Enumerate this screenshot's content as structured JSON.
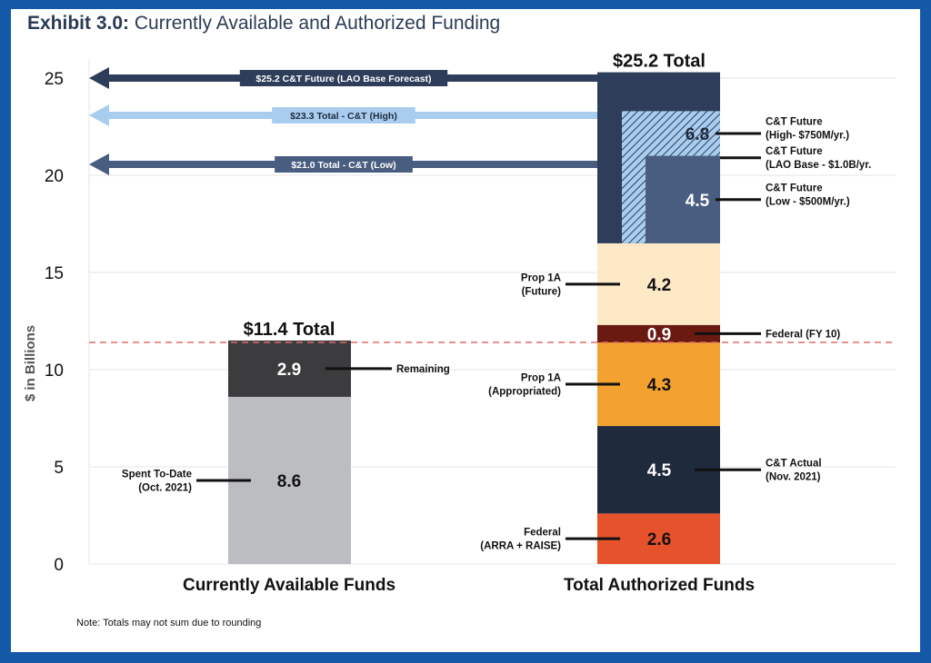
{
  "title_bold": "Exhibit 3.0:",
  "title_rest": " Currently Available and Authorized Funding",
  "note": "Note: Totals may not sum due to rounding",
  "chart_data": {
    "type": "bar",
    "stacked": true,
    "ylabel": "$ in Billions",
    "ylim": [
      0,
      25.5
    ],
    "yticks": [
      0,
      5,
      10,
      15,
      20,
      25
    ],
    "grid": true,
    "categories": [
      "Currently Available Funds",
      "Total Authorized Funds"
    ],
    "totals": [
      "$11.4 Total",
      "$25.2 Total"
    ],
    "stacks": [
      {
        "category": "Currently Available Funds",
        "segments": [
          {
            "label": "Spent To-Date\n(Oct. 2021)",
            "value": 8.6,
            "value_label": "8.6",
            "color": "#bcbdc1",
            "text_color": "#111111",
            "label_side": "left"
          },
          {
            "label": "Remaining",
            "value": 2.9,
            "value_label": "2.9",
            "color": "#3c3c3e",
            "text_color": "#ffffff",
            "label_side": "right"
          }
        ]
      },
      {
        "category": "Total Authorized Funds",
        "segments": [
          {
            "label": "Federal\n(ARRA + RAISE)",
            "value": 2.6,
            "value_label": "2.6",
            "color": "#e6522c",
            "text_color": "#111111",
            "label_side": "left"
          },
          {
            "label": "C&T Actual\n(Nov. 2021)",
            "value": 4.5,
            "value_label": "4.5",
            "color": "#1f2a3d",
            "text_color": "#ffffff",
            "label_side": "right"
          },
          {
            "label": "Prop 1A\n(Appropriated)",
            "value": 4.3,
            "value_label": "4.3",
            "color": "#f3a12f",
            "text_color": "#111111",
            "label_side": "left"
          },
          {
            "label": "Federal (FY 10)",
            "value": 0.9,
            "value_label": "0.9",
            "color": "#6b1a12",
            "text_color": "#ffffff",
            "label_side": "right"
          },
          {
            "label": "Prop 1A\n(Future)",
            "value": 4.2,
            "value_label": "4.2",
            "color": "#fde9c6",
            "text_color": "#111111",
            "label_side": "left"
          },
          {
            "label": "C&T Future\n(LAO Base - $1.0B/yr.",
            "value": 8.8,
            "value_label": "8.8",
            "color": "#2e3d59",
            "text_color": "#ffffff",
            "label_side": "right"
          }
        ],
        "overlays": [
          {
            "label": "C&T Future\n(High- $750M/yr.)",
            "value": 6.8,
            "value_label": "6.8",
            "top": 23.3,
            "color": "#a9cdef",
            "hatched": true,
            "text_color": "#1f2a3d"
          },
          {
            "label": "C&T Future\n(Low - $500M/yr.)",
            "value": 4.5,
            "value_label": "4.5",
            "top": 21.0,
            "color": "#485d7f",
            "text_color": "#ffffff"
          }
        ]
      }
    ],
    "reference_line": {
      "value": 11.4,
      "color": "#e06a6a",
      "style": "dashed"
    },
    "arrows": [
      {
        "label": "$25.2 C&T Future (LAO Base Forecast)",
        "value": 25.2,
        "color": "#2e3d59",
        "text_color": "#ffffff"
      },
      {
        "label": "$23.3 Total - C&T (High)",
        "value": 23.3,
        "color": "#a9cdef",
        "text_color": "#1f2a3d"
      },
      {
        "label": "$21.0 Total - C&T (Low)",
        "value": 21.0,
        "color": "#485d7f",
        "text_color": "#ffffff"
      }
    ]
  }
}
